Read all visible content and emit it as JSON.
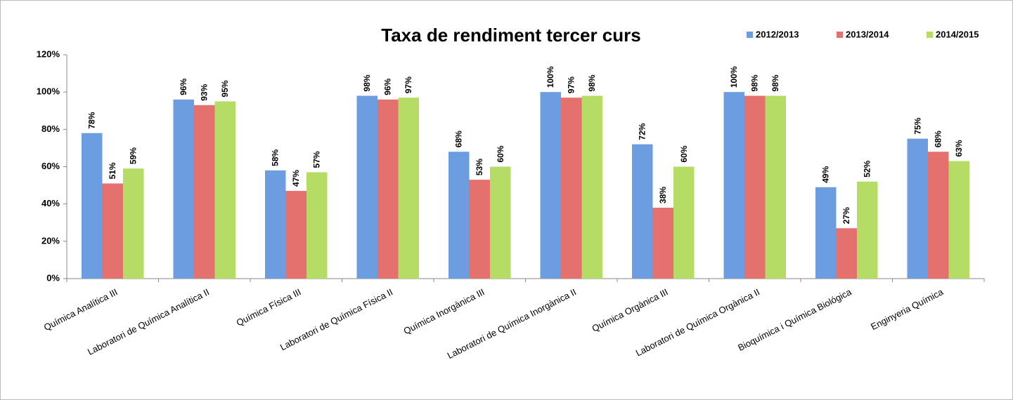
{
  "chart_data": {
    "type": "bar",
    "title": "Taxa de rendiment tercer curs",
    "categories": [
      "Química Analítica III",
      "Laboratori de Química Analítica II",
      "Química Física III",
      "Laboratori de Química Física II",
      "Química Inorgànica III",
      "Laboratori de Química Inorgànica II",
      "Química Orgànica III",
      "Laboratori de Química Orgànica II",
      "Bioquímica i Química Biológica",
      "Enginyeria Química"
    ],
    "series": [
      {
        "name": "2012/2013",
        "color": "#6b9de0",
        "values": [
          78,
          96,
          58,
          98,
          68,
          100,
          72,
          100,
          49,
          75
        ],
        "value_labels": [
          "78%",
          "96%",
          "58%",
          "98%",
          "68%",
          "100%",
          "72%",
          "100%",
          "49%",
          "75%"
        ]
      },
      {
        "name": "2013/2014",
        "color": "#e4716d",
        "values": [
          51,
          93,
          47,
          96,
          53,
          97,
          38,
          98,
          27,
          68
        ],
        "value_labels": [
          "51%",
          "93%",
          "47%",
          "96%",
          "53%",
          "97%",
          "38%",
          "98%",
          "27%",
          "68%"
        ]
      },
      {
        "name": "2014/2015",
        "color": "#b5dd66",
        "values": [
          59,
          95,
          57,
          97,
          60,
          98,
          60,
          98,
          52,
          63
        ],
        "value_labels": [
          "59%",
          "95%",
          "57%",
          "97%",
          "60%",
          "98%",
          "60%",
          "98%",
          "52%",
          "63%"
        ]
      }
    ],
    "ylim": [
      0,
      120
    ],
    "yticks": [
      {
        "value": 0,
        "label": "0%"
      },
      {
        "value": 20,
        "label": "20%"
      },
      {
        "value": 40,
        "label": "40%"
      },
      {
        "value": 60,
        "label": "60%"
      },
      {
        "value": 80,
        "label": "80%"
      },
      {
        "value": 100,
        "label": "100%"
      },
      {
        "value": 120,
        "label": "120%"
      }
    ],
    "legend": "top-right"
  }
}
